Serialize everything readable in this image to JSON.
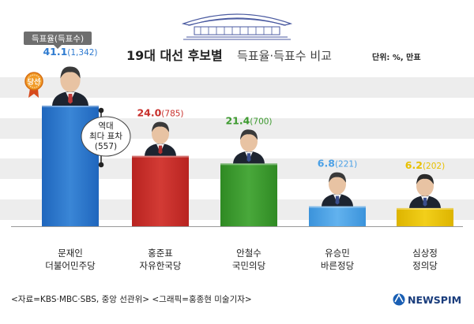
{
  "header": {
    "title_bold": "19대 대선 후보별",
    "title_light": "득표율·득표수 비교",
    "unit": "단위: %, 만표"
  },
  "legend_box": "득표율(득표수)",
  "annotation": [
    "역대",
    "최다 표차",
    "(557)"
  ],
  "winner_badge": "당선",
  "source": "<자료=KBS·MBC·SBS, 중앙 선관위> <그래픽=홍종현 미술기자>",
  "brand": "NEWSPIM",
  "colors": {
    "blue": "#2f7bd0",
    "red": "#c8302c",
    "green": "#3d9a2f",
    "lightblue": "#4aa0e6",
    "yellow": "#e8c000",
    "stripe": "#ededed",
    "navy": "#3a4a8c"
  },
  "chart_data": {
    "type": "bar",
    "title": "19대 대선 후보별 득표율·득표수 비교",
    "unit": "단위: %, 만표",
    "categories": [
      "문재인 더불어민주당",
      "홍준표 자유한국당",
      "안철수 국민의당",
      "유승민 바른정당",
      "심상정 정의당"
    ],
    "candidates": [
      {
        "name": "문재인",
        "party": "더불어민주당",
        "value": 41.1,
        "value_label": "41.1",
        "votes_label": "(1,342)",
        "color": "#2f7bd0"
      },
      {
        "name": "홍준표",
        "party": "자유한국당",
        "value": 24.0,
        "value_label": "24.0",
        "votes_label": "(785)",
        "color": "#c8302c"
      },
      {
        "name": "안철수",
        "party": "국민의당",
        "value": 21.4,
        "value_label": "21.4",
        "votes_label": "(700)",
        "color": "#3d9a2f"
      },
      {
        "name": "유승민",
        "party": "바른정당",
        "value": 6.8,
        "value_label": "6.8",
        "votes_label": "(221)",
        "color": "#4aa0e6"
      },
      {
        "name": "심상정",
        "party": "정의당",
        "value": 6.2,
        "value_label": "6.2",
        "votes_label": "(202)",
        "color": "#e8c000"
      }
    ],
    "values": [
      41.1,
      24.0,
      21.4,
      6.8,
      6.2
    ],
    "votes": [
      1342,
      785,
      700,
      221,
      202
    ],
    "legend": "득표율(득표수)"
  }
}
